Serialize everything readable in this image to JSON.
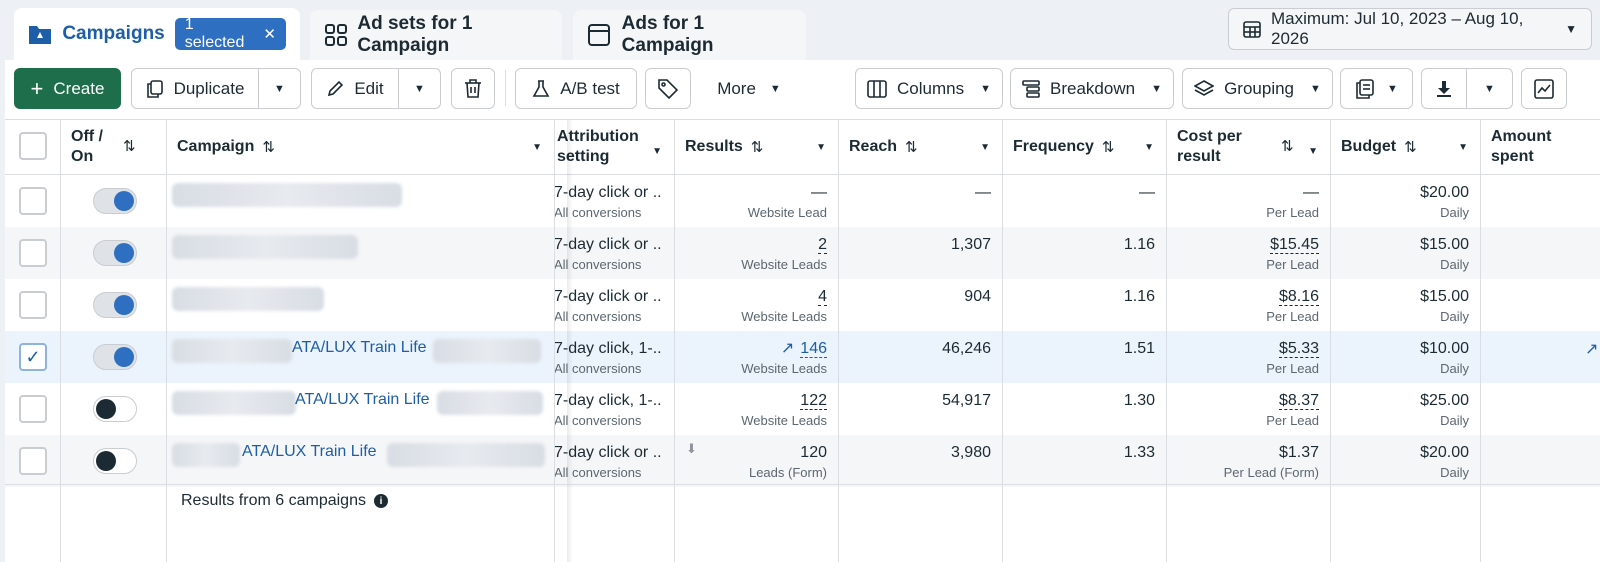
{
  "tabs": {
    "campaigns": "Campaigns",
    "selected_badge": "1 selected",
    "adsets": "Ad sets for 1 Campaign",
    "ads": "Ads for 1 Campaign"
  },
  "date_range": "Maximum: Jul 10, 2023 – Aug 10, 2026",
  "toolbar": {
    "create": "Create",
    "duplicate": "Duplicate",
    "edit": "Edit",
    "ab_test": "A/B test",
    "more": "More",
    "columns": "Columns",
    "breakdown": "Breakdown",
    "grouping": "Grouping"
  },
  "columns": {
    "off_on": "Off / On",
    "campaign": "Campaign",
    "attribution": "Attribution setting",
    "results": "Results",
    "reach": "Reach",
    "frequency": "Frequency",
    "cost_per_result": "Cost per result",
    "budget": "Budget",
    "amount_spent": "Amount spent"
  },
  "rows": [
    {
      "selected": false,
      "on": true,
      "campaign": "",
      "attribution": "7-day click or ...",
      "attribution_sub": "All conversions",
      "results": "—",
      "results_sub": "Website Lead",
      "reach": "—",
      "frequency": "—",
      "cpr": "—",
      "cpr_sub": "Per Lead",
      "budget": "$20.00",
      "budget_sub": "Daily"
    },
    {
      "selected": false,
      "on": true,
      "campaign": "",
      "attribution": "7-day click or ...",
      "attribution_sub": "All conversions",
      "results": "2",
      "results_sub": "Website Leads",
      "reach": "1,307",
      "frequency": "1.16",
      "cpr": "$15.45",
      "cpr_sub": "Per Lead",
      "budget": "$15.00",
      "budget_sub": "Daily"
    },
    {
      "selected": false,
      "on": true,
      "campaign": "",
      "attribution": "7-day click or ...",
      "attribution_sub": "All conversions",
      "results": "4",
      "results_sub": "Website Leads",
      "reach": "904",
      "frequency": "1.16",
      "cpr": "$8.16",
      "cpr_sub": "Per Lead",
      "budget": "$15.00",
      "budget_sub": "Daily"
    },
    {
      "selected": true,
      "on": true,
      "campaign": "ATA/LUX Train Life",
      "attribution": "7-day click, 1-...",
      "attribution_sub": "All conversions",
      "results": "146",
      "results_sub": "Website Leads",
      "reach": "46,246",
      "frequency": "1.51",
      "cpr": "$5.33",
      "cpr_sub": "Per Lead",
      "budget": "$10.00",
      "budget_sub": "Daily"
    },
    {
      "selected": false,
      "on": false,
      "campaign": "ATA/LUX Train Life",
      "attribution": "7-day click, 1-...",
      "attribution_sub": "All conversions",
      "results": "122",
      "results_sub": "Website Leads",
      "reach": "54,917",
      "frequency": "1.30",
      "cpr": "$8.37",
      "cpr_sub": "Per Lead",
      "budget": "$25.00",
      "budget_sub": "Daily"
    },
    {
      "selected": false,
      "on": false,
      "campaign": "ATA/LUX Train Life",
      "attribution": "7-day click or ...",
      "attribution_sub": "All conversions",
      "results": "120",
      "results_sub": "Leads (Form)",
      "reach": "3,980",
      "frequency": "1.33",
      "cpr": "$1.37",
      "cpr_sub": "Per Lead (Form)",
      "budget": "$20.00",
      "budget_sub": "Daily"
    }
  ],
  "footer": "Results from 6 campaigns",
  "colors": {
    "accent": "#2e6fc2",
    "create_green": "#1f6e4b",
    "link": "#1e5ea8"
  }
}
